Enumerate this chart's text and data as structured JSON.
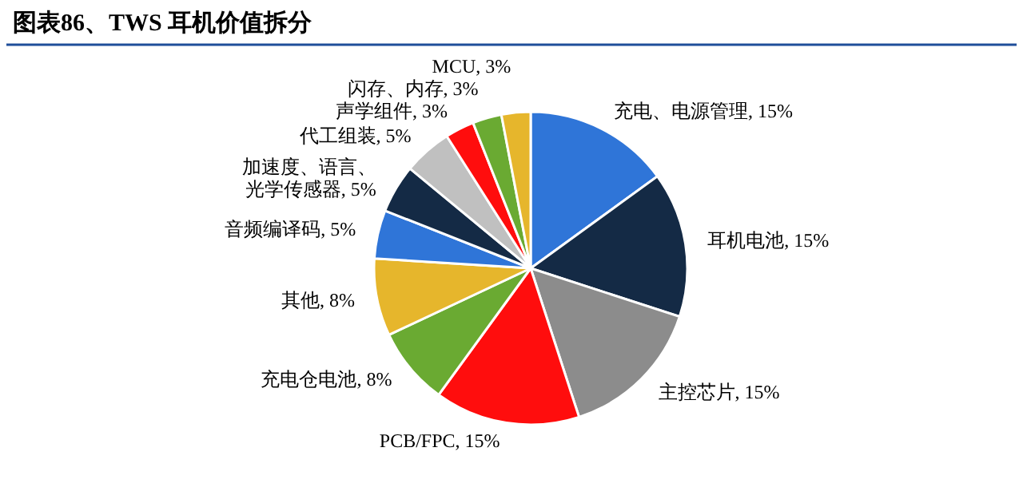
{
  "chart_data": {
    "type": "pie",
    "title": "图表86、TWS 耳机价值拆分",
    "categories": [
      "充电、电源管理",
      "耳机电池",
      "主控芯片",
      "PCB/FPC",
      "充电仓电池",
      "其他",
      "音频编译码",
      "加速度、语言、光学传感器",
      "代工组装",
      "声学组件",
      "闪存、内存",
      "MCU"
    ],
    "values": [
      15,
      15,
      15,
      15,
      8,
      8,
      5,
      5,
      5,
      3,
      3,
      3
    ],
    "colors": [
      "#2f75d8",
      "#142a45",
      "#8c8c8c",
      "#ff0d0d",
      "#6aaa32",
      "#e6b62c",
      "#2f75d8",
      "#142a45",
      "#c0c0c0",
      "#ff0d0d",
      "#6aaa32",
      "#e6b62c"
    ],
    "value_labels": [
      ", 15%",
      ", 15%",
      ", 15%",
      ", 15%",
      ", 8%",
      ", 8%",
      ", 5%",
      ", 5%",
      ", 5%",
      ", 3%",
      ", 3%",
      ", 3%"
    ]
  }
}
